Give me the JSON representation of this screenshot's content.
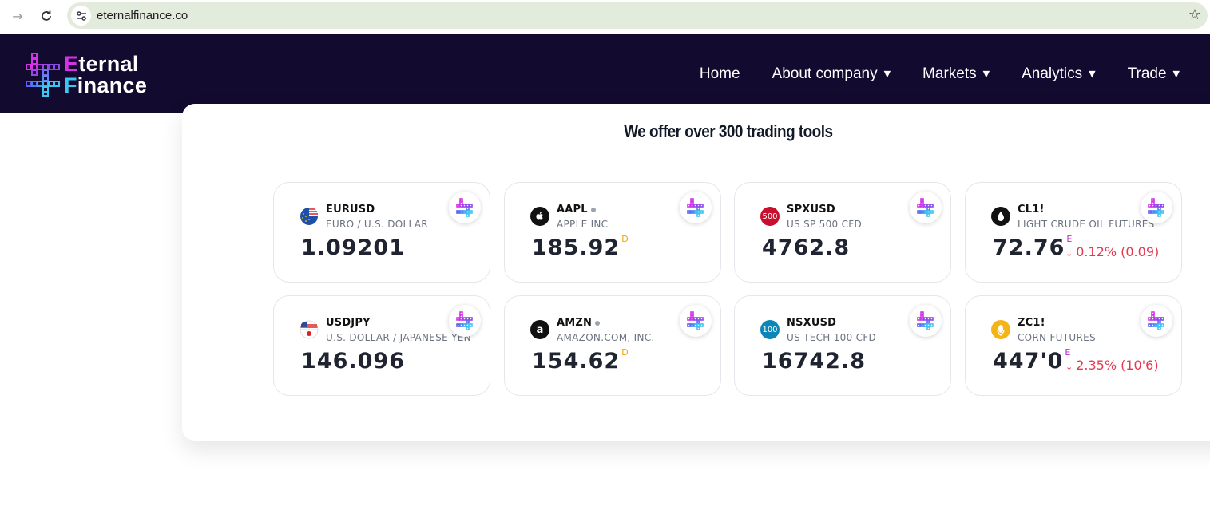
{
  "browser": {
    "url": "eternalfinance.co",
    "back_icon": "arrow-right-icon",
    "reload_icon": "reload-icon",
    "site_info_icon": "tune-icon",
    "bookmark_icon": "star-icon"
  },
  "header": {
    "logo_line1_first": "E",
    "logo_line1_rest": "ternal",
    "logo_line2_first": "F",
    "logo_line2_rest": "inance",
    "nav": [
      {
        "label": "Home",
        "caret": ""
      },
      {
        "label": "About company",
        "caret": "▼"
      },
      {
        "label": "Markets",
        "caret": "▼"
      },
      {
        "label": "Analytics",
        "caret": "▼"
      },
      {
        "label": "Trade",
        "caret": "▼"
      }
    ],
    "colors": {
      "background": "#130a2f",
      "accent_magenta": "#d633e8",
      "accent_cyan": "#3cc6f0",
      "active_underline": "#3da5f5"
    }
  },
  "main": {
    "title": "We offer over 300 trading tools",
    "cards": [
      {
        "symbol": "EURUSD",
        "name": "EURO / U.S. DOLLAR",
        "price": "1.09201",
        "sup": "",
        "change": "",
        "logo": "eu-us-flag-icon",
        "logo_text": ""
      },
      {
        "symbol": "AAPL",
        "name": "APPLE INC",
        "price": "185.92",
        "sup": "D",
        "change": "",
        "logo": "apple-icon",
        "logo_text": ""
      },
      {
        "symbol": "SPXUSD",
        "name": "US SP 500 CFD",
        "price": "4762.8",
        "sup": "",
        "change": "",
        "logo": "sp500-icon",
        "logo_text": "500"
      },
      {
        "symbol": "CL1!",
        "name": "LIGHT CRUDE OIL FUTURES",
        "price": "72.76",
        "sup": "E",
        "change": "0.12% (0.09)",
        "logo": "oil-drop-icon",
        "logo_text": ""
      },
      {
        "symbol": "USDJPY",
        "name": "U.S. DOLLAR / JAPANESE YEN",
        "price": "146.096",
        "sup": "",
        "change": "",
        "logo": "us-jp-flag-icon",
        "logo_text": ""
      },
      {
        "symbol": "AMZN",
        "name": "AMAZON.COM, INC.",
        "price": "154.62",
        "sup": "D",
        "change": "",
        "logo": "amazon-icon",
        "logo_text": "a"
      },
      {
        "symbol": "NSXUSD",
        "name": "US TECH 100 CFD",
        "price": "16742.8",
        "sup": "",
        "change": "",
        "logo": "nasdaq100-icon",
        "logo_text": "100"
      },
      {
        "symbol": "ZC1!",
        "name": "CORN FUTURES",
        "price": "447'0",
        "sup": "E",
        "change": "2.35% (10'6)",
        "logo": "corn-icon",
        "logo_text": ""
      }
    ],
    "colors": {
      "negative": "#e53950",
      "delayed_badge": "#f0a500",
      "eod_badge": "#c026d3"
    }
  }
}
